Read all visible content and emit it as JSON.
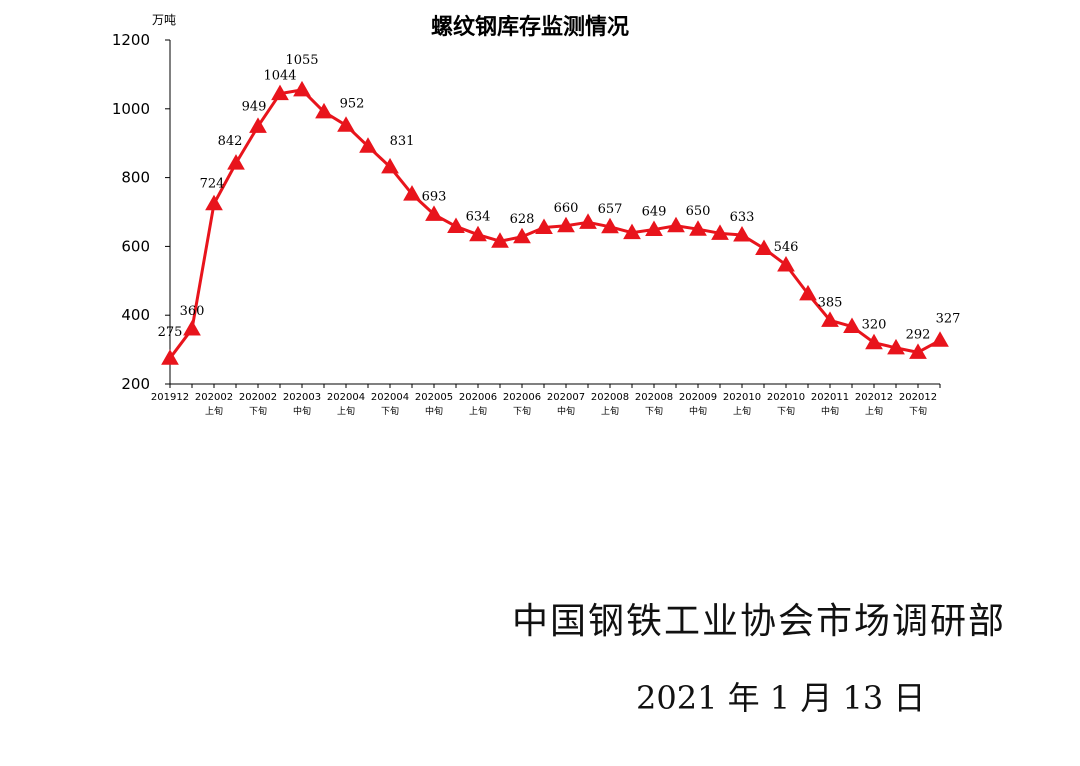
{
  "chart_data": {
    "type": "line",
    "title": "螺纹钢库存监测情况",
    "unit_label": "万吨",
    "ylim": [
      200,
      1200
    ],
    "yticks": [
      200,
      400,
      600,
      800,
      1000,
      1200
    ],
    "grid": false,
    "color": "#e8141c",
    "marker": "triangle",
    "x_tick_labels": [
      {
        "top": "201912",
        "bottom": ""
      },
      {
        "top": "202002",
        "bottom": "上旬"
      },
      {
        "top": "202002",
        "bottom": "下旬"
      },
      {
        "top": "202003",
        "bottom": "中旬"
      },
      {
        "top": "202004",
        "bottom": "上旬"
      },
      {
        "top": "202004",
        "bottom": "下旬"
      },
      {
        "top": "202005",
        "bottom": "中旬"
      },
      {
        "top": "202006",
        "bottom": "上旬"
      },
      {
        "top": "202006",
        "bottom": "下旬"
      },
      {
        "top": "202007",
        "bottom": "中旬"
      },
      {
        "top": "202008",
        "bottom": "上旬"
      },
      {
        "top": "202008",
        "bottom": "下旬"
      },
      {
        "top": "202009",
        "bottom": "中旬"
      },
      {
        "top": "202010",
        "bottom": "上旬"
      },
      {
        "top": "202010",
        "bottom": "下旬"
      },
      {
        "top": "202011",
        "bottom": "中旬"
      },
      {
        "top": "202012",
        "bottom": "上旬"
      },
      {
        "top": "202012",
        "bottom": "下旬"
      }
    ],
    "values": [
      275,
      360,
      724,
      842,
      949,
      1044,
      1055,
      991,
      952,
      891,
      831,
      752,
      693,
      658,
      634,
      615,
      628,
      655,
      660,
      670,
      657,
      640,
      649,
      660,
      650,
      638,
      633,
      594,
      546,
      462,
      385,
      367,
      320,
      305,
      292,
      327
    ],
    "labeled_indices": [
      0,
      1,
      2,
      3,
      4,
      5,
      6,
      8,
      10,
      12,
      14,
      16,
      18,
      20,
      22,
      24,
      26,
      28,
      30,
      32,
      34,
      35
    ]
  },
  "footer": {
    "organization": "中国钢铁工业协会市场调研部",
    "date": "2021 年 1 月 13 日"
  }
}
